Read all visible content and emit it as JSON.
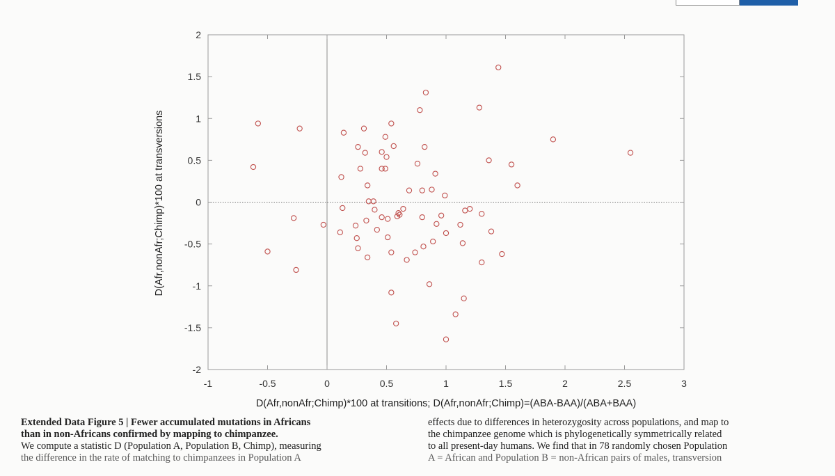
{
  "chart_data": {
    "type": "scatter",
    "xlabel": "D(Afr,nonAfr;Chimp)*100 at transitions; D(Afr,nonAfr;Chimp)=(ABA-BAA)/(ABA+BAA)",
    "ylabel": "D(Afr,nonAfr;Chimp)*100 at transversions",
    "xlim": [
      -1,
      3
    ],
    "ylim": [
      -2,
      2
    ],
    "x_ticks": [
      -1,
      -0.5,
      0,
      0.5,
      1,
      1.5,
      2,
      2.5,
      3
    ],
    "y_ticks": [
      -2,
      -1.5,
      -1,
      -0.5,
      0,
      0.5,
      1,
      1.5,
      2
    ],
    "x_tick_labels": [
      "-1",
      "-0.5",
      "0",
      "0.5",
      "1",
      "1.5",
      "2",
      "2.5",
      "3"
    ],
    "y_tick_labels": [
      "-2",
      "-1.5",
      "-1",
      "-0.5",
      "0",
      "0.5",
      "1",
      "1.5",
      "2"
    ],
    "grid": false,
    "reference_lines": {
      "x_zero": "solid",
      "y_zero": "dotted"
    },
    "marker": "open-circle",
    "marker_color": "#c0504d",
    "points": [
      [
        1.44,
        1.61
      ],
      [
        0.83,
        1.31
      ],
      [
        1.28,
        1.13
      ],
      [
        0.78,
        1.1
      ],
      [
        0.54,
        0.94
      ],
      [
        -0.58,
        0.94
      ],
      [
        0.31,
        0.88
      ],
      [
        -0.23,
        0.88
      ],
      [
        0.14,
        0.83
      ],
      [
        0.49,
        0.78
      ],
      [
        1.9,
        0.75
      ],
      [
        0.26,
        0.66
      ],
      [
        0.56,
        0.67
      ],
      [
        0.82,
        0.66
      ],
      [
        0.46,
        0.6
      ],
      [
        0.32,
        0.59
      ],
      [
        2.55,
        0.59
      ],
      [
        0.5,
        0.54
      ],
      [
        1.36,
        0.5
      ],
      [
        0.76,
        0.46
      ],
      [
        1.55,
        0.45
      ],
      [
        -0.62,
        0.42
      ],
      [
        0.28,
        0.4
      ],
      [
        0.46,
        0.4
      ],
      [
        0.49,
        0.4
      ],
      [
        0.91,
        0.34
      ],
      [
        0.12,
        0.3
      ],
      [
        0.34,
        0.2
      ],
      [
        1.6,
        0.2
      ],
      [
        0.69,
        0.14
      ],
      [
        0.8,
        0.14
      ],
      [
        0.88,
        0.15
      ],
      [
        0.99,
        0.08
      ],
      [
        0.35,
        0.01
      ],
      [
        0.39,
        0.01
      ],
      [
        0.13,
        -0.07
      ],
      [
        0.4,
        -0.09
      ],
      [
        0.64,
        -0.08
      ],
      [
        1.16,
        -0.1
      ],
      [
        1.2,
        -0.08
      ],
      [
        0.6,
        -0.13
      ],
      [
        0.61,
        -0.15
      ],
      [
        0.96,
        -0.16
      ],
      [
        1.3,
        -0.14
      ],
      [
        0.59,
        -0.17
      ],
      [
        0.8,
        -0.18
      ],
      [
        0.46,
        -0.18
      ],
      [
        0.51,
        -0.2
      ],
      [
        -0.28,
        -0.19
      ],
      [
        0.33,
        -0.22
      ],
      [
        0.92,
        -0.26
      ],
      [
        1.12,
        -0.27
      ],
      [
        -0.03,
        -0.27
      ],
      [
        0.24,
        -0.28
      ],
      [
        0.42,
        -0.33
      ],
      [
        0.11,
        -0.36
      ],
      [
        1.0,
        -0.37
      ],
      [
        1.38,
        -0.35
      ],
      [
        0.51,
        -0.42
      ],
      [
        0.25,
        -0.43
      ],
      [
        0.89,
        -0.47
      ],
      [
        1.14,
        -0.49
      ],
      [
        0.26,
        -0.55
      ],
      [
        0.81,
        -0.53
      ],
      [
        -0.5,
        -0.59
      ],
      [
        0.54,
        -0.6
      ],
      [
        0.74,
        -0.6
      ],
      [
        1.47,
        -0.62
      ],
      [
        0.34,
        -0.66
      ],
      [
        0.67,
        -0.69
      ],
      [
        1.3,
        -0.72
      ],
      [
        -0.26,
        -0.81
      ],
      [
        0.86,
        -0.98
      ],
      [
        0.54,
        -1.08
      ],
      [
        1.15,
        -1.15
      ],
      [
        1.08,
        -1.34
      ],
      [
        0.58,
        -1.45
      ],
      [
        1.0,
        -1.64
      ]
    ]
  },
  "caption": {
    "left_lines": [
      {
        "bold": true,
        "text": "Extended Data Figure 5 | Fewer accumulated mutations in Africans"
      },
      {
        "bold": true,
        "text": "than in non-Africans confirmed by mapping to chimpanzee."
      },
      {
        "bold": false,
        "text": "We compute a statistic D (Population A, Population B, Chimp), measuring"
      },
      {
        "bold": false,
        "text": "the difference in the rate of matching to chimpanzees in Population A"
      }
    ],
    "right_lines": [
      {
        "text": "effects due to differences in heterozygosity across populations, and map to"
      },
      {
        "text": "the chimpanzee genome which is phylogenetically symmetrically related"
      },
      {
        "text": "to all present-day humans. We find that in 78 randomly chosen Population"
      },
      {
        "text": "A = African and Population B = non-African pairs of males, transversion"
      }
    ]
  }
}
